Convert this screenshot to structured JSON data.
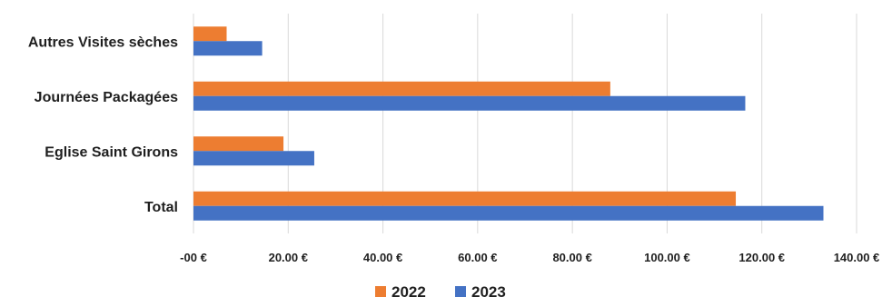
{
  "chart_data": {
    "type": "bar",
    "orientation": "horizontal",
    "categories": [
      "Autres Visites sèches",
      "Journées Packagées",
      "Eglise Saint Girons",
      "Total"
    ],
    "series": [
      {
        "name": "2022",
        "color": "#ed7d31",
        "values": [
          7,
          88,
          19,
          114.5
        ]
      },
      {
        "name": "2023",
        "color": "#4472c4",
        "values": [
          14.5,
          116.5,
          25.5,
          133
        ]
      }
    ],
    "xlim": [
      0,
      140
    ],
    "xticks": [
      0,
      20,
      40,
      60,
      80,
      100,
      120,
      140
    ],
    "xtick_labels": [
      "-00 €",
      "20.00 €",
      "40.00 €",
      "60.00 €",
      "80.00 €",
      "100.00 €",
      "120.00 €",
      "140.00 €"
    ],
    "grid": "vertical",
    "legend": "bottom-center",
    "title": "",
    "xlabel": "",
    "ylabel": ""
  }
}
